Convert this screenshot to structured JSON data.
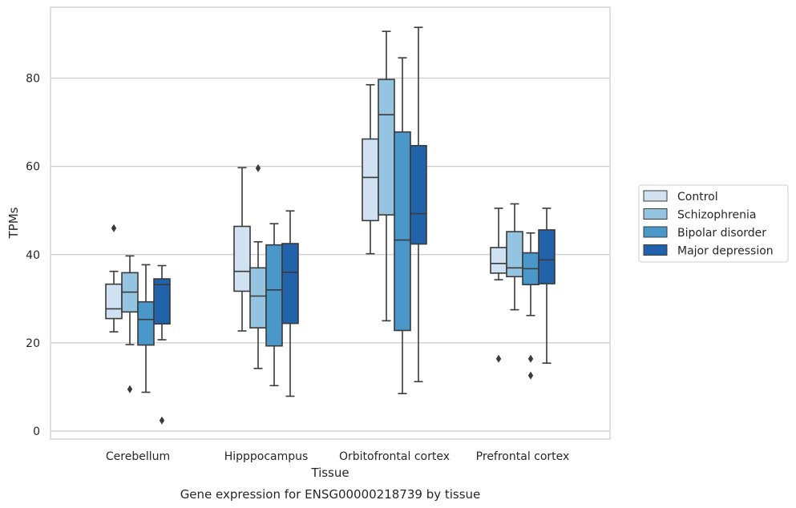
{
  "chart_data": {
    "type": "box",
    "title": "",
    "caption": "Gene expression for ENSG00000218739 by tissue",
    "xlabel": "Tissue",
    "ylabel": "TPMs",
    "ylim": [
      -1.5,
      96.5
    ],
    "yticks": [
      0,
      20,
      40,
      60,
      80
    ],
    "grid": true,
    "legend_position": "right",
    "categories": [
      "Cerebellum",
      "Hipppocampus",
      "Orbitofrontal cortex",
      "Prefrontal cortex"
    ],
    "series": [
      {
        "name": "Control",
        "color": "#d0e1f2",
        "boxes": [
          {
            "whislo": 22.5,
            "q1": 25.5,
            "med": 27.7,
            "q3": 33.3,
            "whishi": 36.2,
            "fliers": [
              46.0
            ]
          },
          {
            "whislo": 22.7,
            "q1": 31.7,
            "med": 36.2,
            "q3": 46.4,
            "whishi": 59.7,
            "fliers": []
          },
          {
            "whislo": 40.2,
            "q1": 47.7,
            "med": 57.5,
            "q3": 66.2,
            "whishi": 78.5,
            "fliers": []
          },
          {
            "whislo": 34.3,
            "q1": 35.8,
            "med": 38.0,
            "q3": 41.6,
            "whishi": 50.5,
            "fliers": [
              16.4
            ]
          }
        ]
      },
      {
        "name": "Schizophrenia",
        "color": "#94c4df",
        "boxes": [
          {
            "whislo": 19.6,
            "q1": 27.0,
            "med": 31.5,
            "q3": 35.9,
            "whishi": 39.7,
            "fliers": [
              9.5
            ]
          },
          {
            "whislo": 14.2,
            "q1": 23.4,
            "med": 30.6,
            "q3": 37.0,
            "whishi": 42.9,
            "fliers": [
              59.6
            ]
          },
          {
            "whislo": 25.0,
            "q1": 49.0,
            "med": 71.7,
            "q3": 79.7,
            "whishi": 90.6,
            "fliers": []
          },
          {
            "whislo": 27.5,
            "q1": 35.0,
            "med": 37.0,
            "q3": 45.2,
            "whishi": 51.5,
            "fliers": []
          }
        ]
      },
      {
        "name": "Bipolar disorder",
        "color": "#4a98c9",
        "boxes": [
          {
            "whislo": 8.8,
            "q1": 19.5,
            "med": 25.3,
            "q3": 29.3,
            "whishi": 37.7,
            "fliers": []
          },
          {
            "whislo": 10.3,
            "q1": 19.3,
            "med": 32.0,
            "q3": 42.2,
            "whishi": 47.0,
            "fliers": []
          },
          {
            "whislo": 8.5,
            "q1": 22.8,
            "med": 43.3,
            "q3": 67.8,
            "whishi": 84.6,
            "fliers": []
          },
          {
            "whislo": 26.2,
            "q1": 33.2,
            "med": 36.8,
            "q3": 40.4,
            "whishi": 44.9,
            "fliers": [
              16.4,
              12.6
            ]
          }
        ]
      },
      {
        "name": "Major depression",
        "color": "#2163aa",
        "boxes": [
          {
            "whislo": 20.7,
            "q1": 24.3,
            "med": 33.2,
            "q3": 34.5,
            "whishi": 37.5,
            "fliers": [
              2.4
            ]
          },
          {
            "whislo": 7.9,
            "q1": 24.4,
            "med": 36.0,
            "q3": 42.5,
            "whishi": 49.9,
            "fliers": []
          },
          {
            "whislo": 11.2,
            "q1": 42.4,
            "med": 49.3,
            "q3": 64.7,
            "whishi": 91.5,
            "fliers": []
          },
          {
            "whislo": 15.4,
            "q1": 33.4,
            "med": 38.8,
            "q3": 45.6,
            "whishi": 50.5,
            "fliers": []
          }
        ]
      }
    ]
  }
}
